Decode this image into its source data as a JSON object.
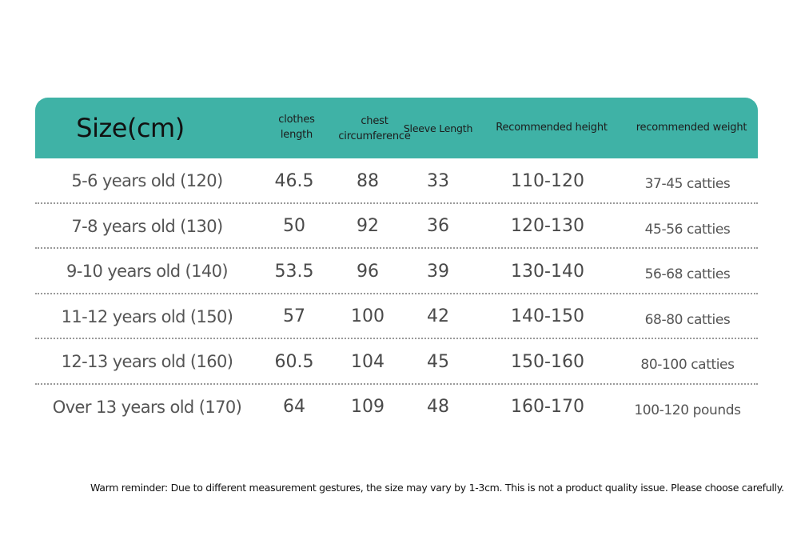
{
  "table": {
    "headers": {
      "size": "Size(cm)",
      "clothes_length_1": "clothes",
      "clothes_length_2": "length",
      "chest_1": "chest",
      "chest_2": "circumference",
      "sleeve": "Sleeve Length",
      "height": "Recommended height",
      "weight": "recommended weight"
    },
    "rows": [
      {
        "size": "5-6 years old (120)",
        "clothes_length": "46.5",
        "chest": "88",
        "sleeve": "33",
        "height": "110-120",
        "weight": "37-45 catties"
      },
      {
        "size": "7-8 years old (130)",
        "clothes_length": "50",
        "chest": "92",
        "sleeve": "36",
        "height": "120-130",
        "weight": "45-56 catties"
      },
      {
        "size": "9-10 years old (140)",
        "clothes_length": "53.5",
        "chest": "96",
        "sleeve": "39",
        "height": "130-140",
        "weight": "56-68 catties"
      },
      {
        "size": "11-12 years old (150)",
        "clothes_length": "57",
        "chest": "100",
        "sleeve": "42",
        "height": "140-150",
        "weight": "68-80 catties"
      },
      {
        "size": "12-13 years old (160)",
        "clothes_length": "60.5",
        "chest": "104",
        "sleeve": "45",
        "height": "150-160",
        "weight": "80-100 catties"
      },
      {
        "size": "Over 13 years old (170)",
        "clothes_length": "64",
        "chest": "109",
        "sleeve": "48",
        "height": "160-170",
        "weight": "100-120 pounds"
      }
    ]
  },
  "reminder": "Warm reminder: Due to different measurement gestures, the size may vary by 1-3cm. This is not a product quality issue. Please choose carefully.",
  "colors": {
    "header_bg": "#3fb2a6",
    "row_text": "#555555"
  }
}
